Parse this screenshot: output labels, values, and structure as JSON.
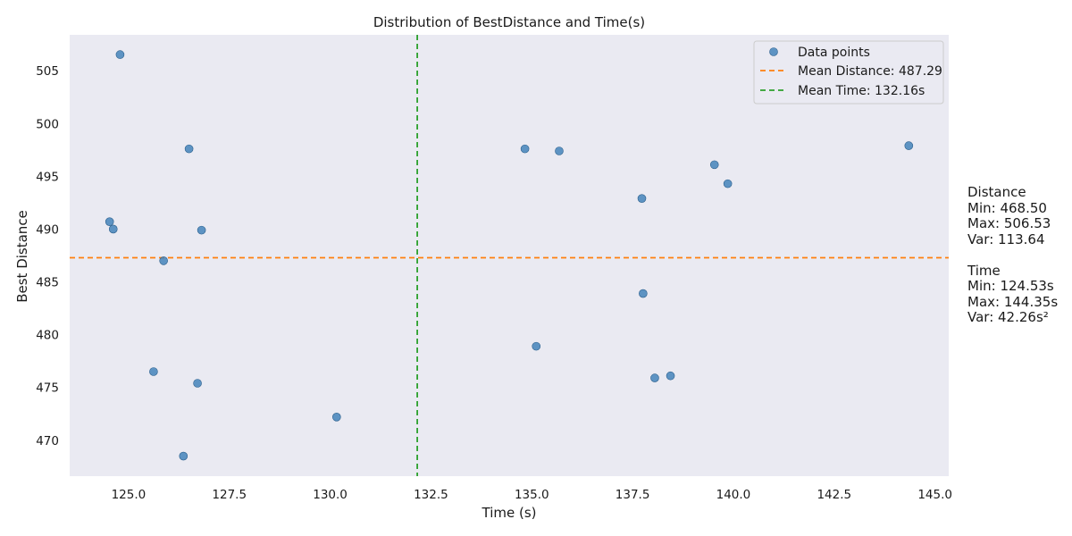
{
  "chart_data": {
    "type": "scatter",
    "title": "Distribution of BestDistance and Time(s)",
    "xlabel": "Time (s)",
    "ylabel": "Best Distance",
    "xlim": [
      123.54,
      145.34
    ],
    "ylim": [
      466.6,
      508.4
    ],
    "x_ticks": [
      125.0,
      127.5,
      130.0,
      132.5,
      135.0,
      137.5,
      140.0,
      142.5,
      145.0
    ],
    "x_tick_labels": [
      "125.0",
      "127.5",
      "130.0",
      "132.5",
      "135.0",
      "137.5",
      "140.0",
      "142.5",
      "145.0"
    ],
    "y_ticks": [
      470,
      475,
      480,
      485,
      490,
      495,
      500,
      505
    ],
    "y_tick_labels": [
      "470",
      "475",
      "480",
      "485",
      "490",
      "495",
      "500",
      "505"
    ],
    "grid": false,
    "background": "#eaeaf2",
    "legend_position": "top-right",
    "series": [
      {
        "name": "Data points",
        "color": "#3a7db6",
        "x": [
          124.79,
          124.53,
          124.62,
          126.5,
          126.81,
          125.87,
          125.62,
          126.71,
          126.36,
          130.16,
          134.83,
          135.68,
          135.11,
          137.73,
          137.76,
          138.05,
          138.44,
          139.53,
          139.86,
          144.35
        ],
        "y": [
          506.53,
          490.7,
          490.0,
          497.6,
          489.9,
          487.0,
          476.5,
          475.4,
          468.5,
          472.2,
          497.6,
          497.4,
          478.9,
          492.9,
          483.9,
          475.9,
          476.1,
          496.1,
          494.3,
          497.9
        ]
      }
    ],
    "reference_lines": [
      {
        "orientation": "horizontal",
        "value": 487.29,
        "label": "Mean Distance: 487.29",
        "color": "#ff7f0e",
        "style": "dashed"
      },
      {
        "orientation": "vertical",
        "value": 132.16,
        "label": "Mean Time: 132.16s",
        "color": "#2ca02c",
        "style": "dashed"
      }
    ]
  },
  "stats": {
    "distance": {
      "heading": "Distance",
      "min": "Min: 468.50",
      "max": "Max: 506.53",
      "var": "Var: 113.64"
    },
    "time": {
      "heading": "Time",
      "min": "Min: 124.53s",
      "max": "Max: 144.35s",
      "var": "Var: 42.26s²"
    }
  }
}
